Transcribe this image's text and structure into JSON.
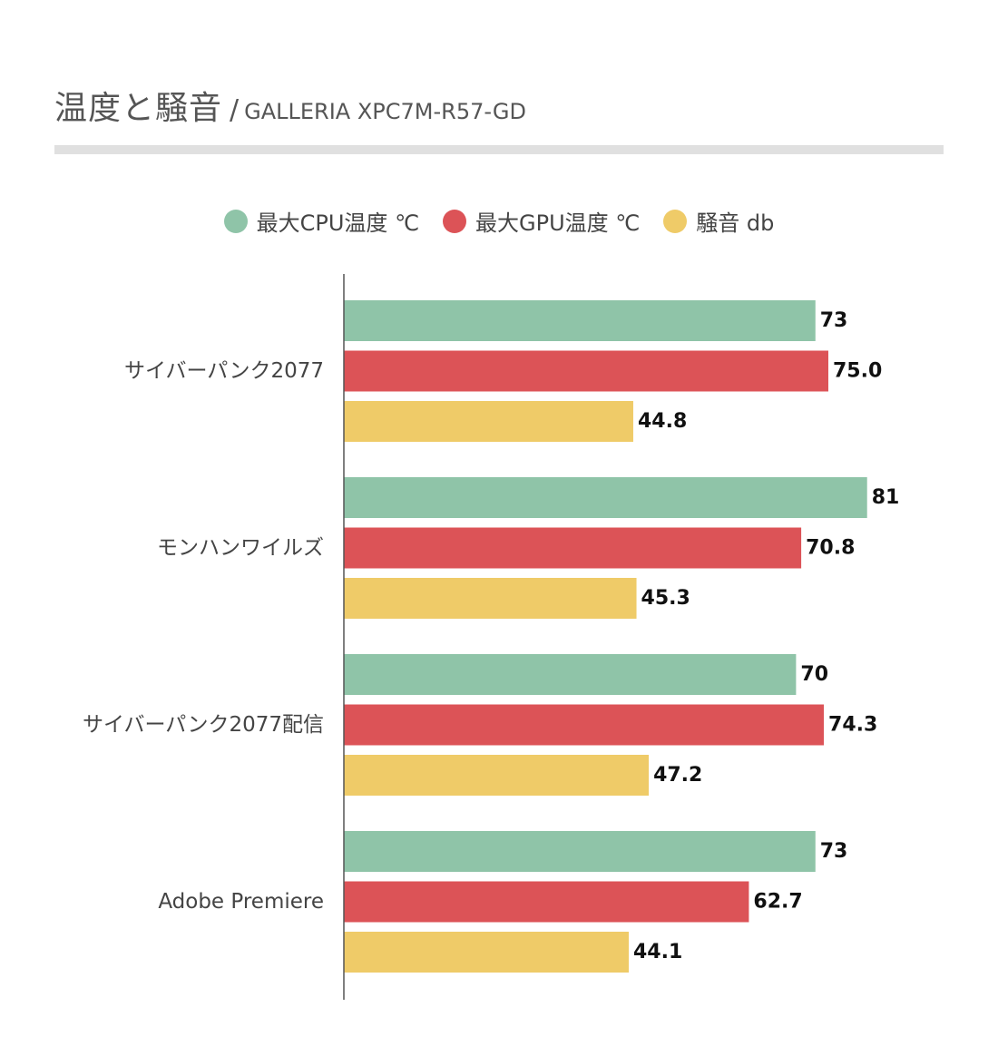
{
  "title": {
    "main": "温度と騒音",
    "separator": "/",
    "sub": "GALLERIA XPC7M-R57-GD"
  },
  "chart_data": {
    "type": "bar",
    "orientation": "horizontal",
    "title": "温度と騒音 / GALLERIA XPC7M-R57-GD",
    "xlabel": "",
    "ylabel": "",
    "xlim": [
      0,
      100
    ],
    "grid": false,
    "legend_position": "top",
    "categories": [
      "サイバーパンク2077",
      "モンハンワイルズ",
      "サイバーパンク2077配信",
      "Adobe Premiere"
    ],
    "series": [
      {
        "name": "最大CPU温度 ℃",
        "color": "#8fc4a8",
        "values": [
          73,
          81,
          70,
          73
        ],
        "labels": [
          "73",
          "81",
          "70",
          "73"
        ]
      },
      {
        "name": "最大GPU温度 ℃",
        "color": "#dc5357",
        "values": [
          75.0,
          70.8,
          74.3,
          62.7
        ],
        "labels": [
          "75.0",
          "70.8",
          "74.3",
          "62.7"
        ]
      },
      {
        "name": "騒音 db",
        "color": "#efcb68",
        "values": [
          44.8,
          45.3,
          47.2,
          44.1
        ],
        "labels": [
          "44.8",
          "45.3",
          "47.2",
          "44.1"
        ]
      }
    ]
  }
}
